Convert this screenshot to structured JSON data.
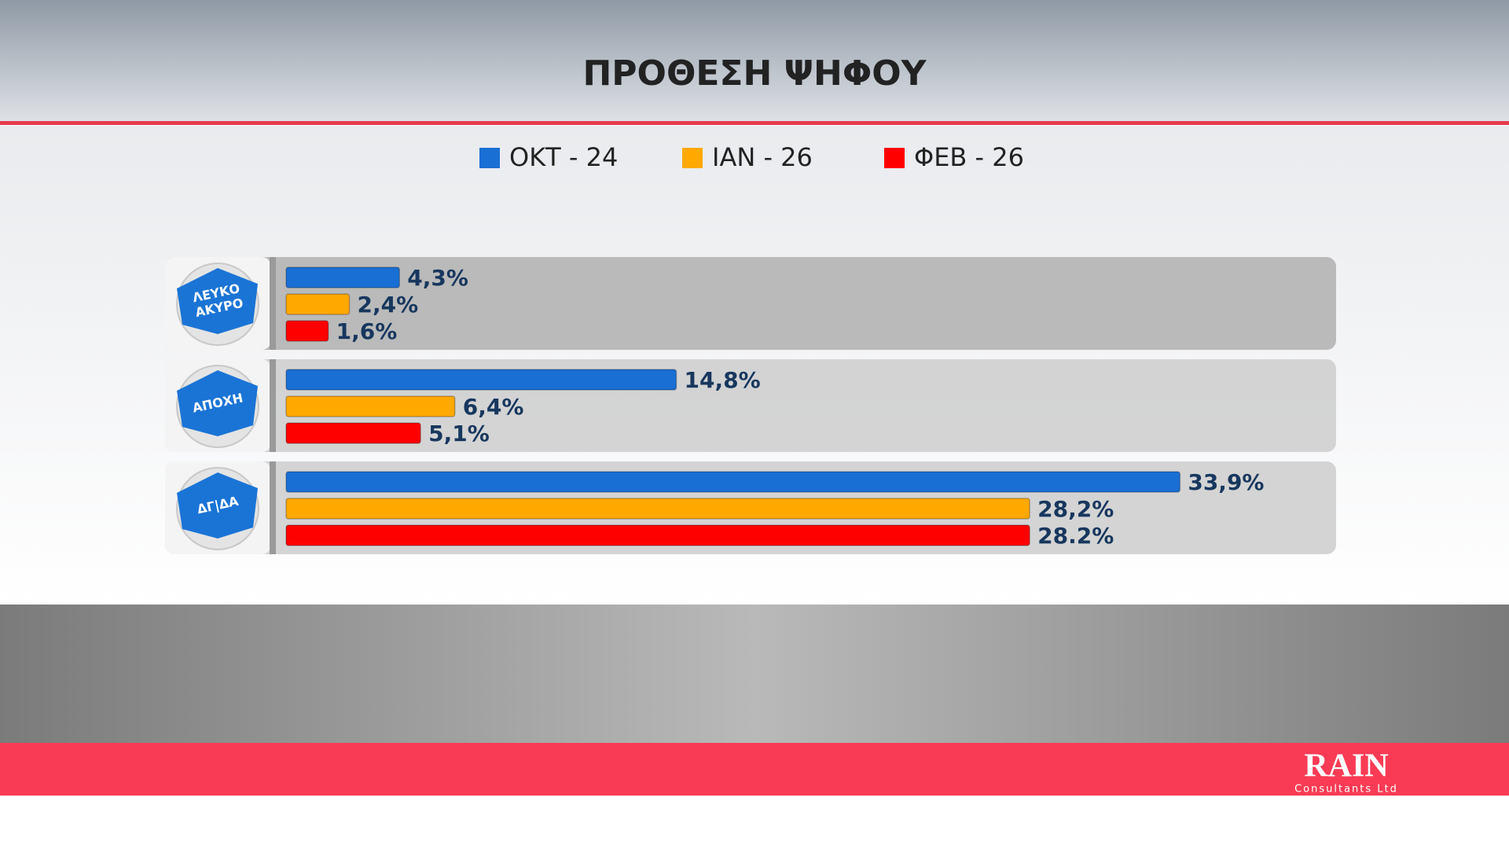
{
  "chart_data": {
    "type": "bar",
    "orientation": "horizontal",
    "title": "ΠΡΟΘΕΣΗ ΨΗΦΟΥ",
    "categories": [
      "ΛΕΥΚΟ ΑΚΥΡΟ",
      "ΑΠΟΧΗ",
      "ΔΓ|ΔΑ"
    ],
    "series": [
      {
        "name": "ΟΚΤ - 24",
        "color": "#1a6fd4",
        "values": [
          4.3,
          14.8,
          33.9
        ],
        "value_labels": [
          "4,3%",
          "14,8%",
          "33,9%"
        ]
      },
      {
        "name": "ΙΑΝ - 26",
        "color": "#ffa800",
        "values": [
          2.4,
          6.4,
          28.2
        ],
        "value_labels": [
          "2,4%",
          "6,4%",
          "28,2%"
        ]
      },
      {
        "name": "ΦΕΒ - 26",
        "color": "#ff0000",
        "values": [
          1.6,
          5.1,
          28.2
        ],
        "value_labels": [
          "1,6%",
          "5,1%",
          "28.2%"
        ]
      }
    ]
  },
  "logo": {
    "name": "RAIN",
    "subtitle": "Consultants Ltd"
  }
}
